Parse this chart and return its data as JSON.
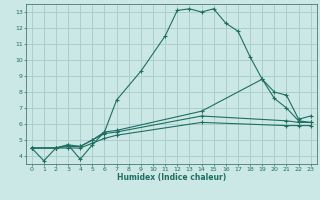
{
  "xlabel": "Humidex (Indice chaleur)",
  "bg_color": "#cce8e6",
  "grid_color": "#aacfcd",
  "line_color": "#1e6e62",
  "xlim": [
    -0.5,
    23.5
  ],
  "ylim": [
    3.5,
    13.5
  ],
  "xticks": [
    0,
    1,
    2,
    3,
    4,
    5,
    6,
    7,
    8,
    9,
    10,
    11,
    12,
    13,
    14,
    15,
    16,
    17,
    18,
    19,
    20,
    21,
    22,
    23
  ],
  "yticks": [
    4,
    5,
    6,
    7,
    8,
    9,
    10,
    11,
    12,
    13
  ],
  "lines": [
    {
      "x": [
        0,
        1,
        2,
        3,
        4,
        5,
        6,
        7,
        9,
        11,
        12,
        13,
        14,
        15,
        16,
        17,
        18,
        19,
        20,
        21,
        22,
        23
      ],
      "y": [
        4.5,
        3.7,
        4.5,
        4.7,
        3.8,
        4.7,
        5.5,
        7.5,
        9.3,
        11.5,
        13.1,
        13.2,
        13.0,
        13.2,
        12.3,
        11.8,
        10.2,
        8.8,
        7.6,
        7.0,
        6.2,
        6.1
      ]
    },
    {
      "x": [
        0,
        2,
        3,
        4,
        5,
        6,
        7,
        14,
        19,
        20,
        21,
        22,
        23
      ],
      "y": [
        4.5,
        4.5,
        4.7,
        4.6,
        5.0,
        5.5,
        5.6,
        6.8,
        8.8,
        8.0,
        7.8,
        6.3,
        6.5
      ]
    },
    {
      "x": [
        0,
        2,
        3,
        4,
        5,
        6,
        7,
        14,
        21,
        22,
        23
      ],
      "y": [
        4.5,
        4.5,
        4.6,
        4.6,
        5.0,
        5.4,
        5.5,
        6.5,
        6.2,
        6.1,
        6.1
      ]
    },
    {
      "x": [
        0,
        2,
        3,
        4,
        5,
        6,
        7,
        14,
        21,
        22,
        23
      ],
      "y": [
        4.5,
        4.5,
        4.5,
        4.5,
        4.8,
        5.1,
        5.3,
        6.1,
        5.9,
        5.9,
        5.9
      ]
    }
  ]
}
